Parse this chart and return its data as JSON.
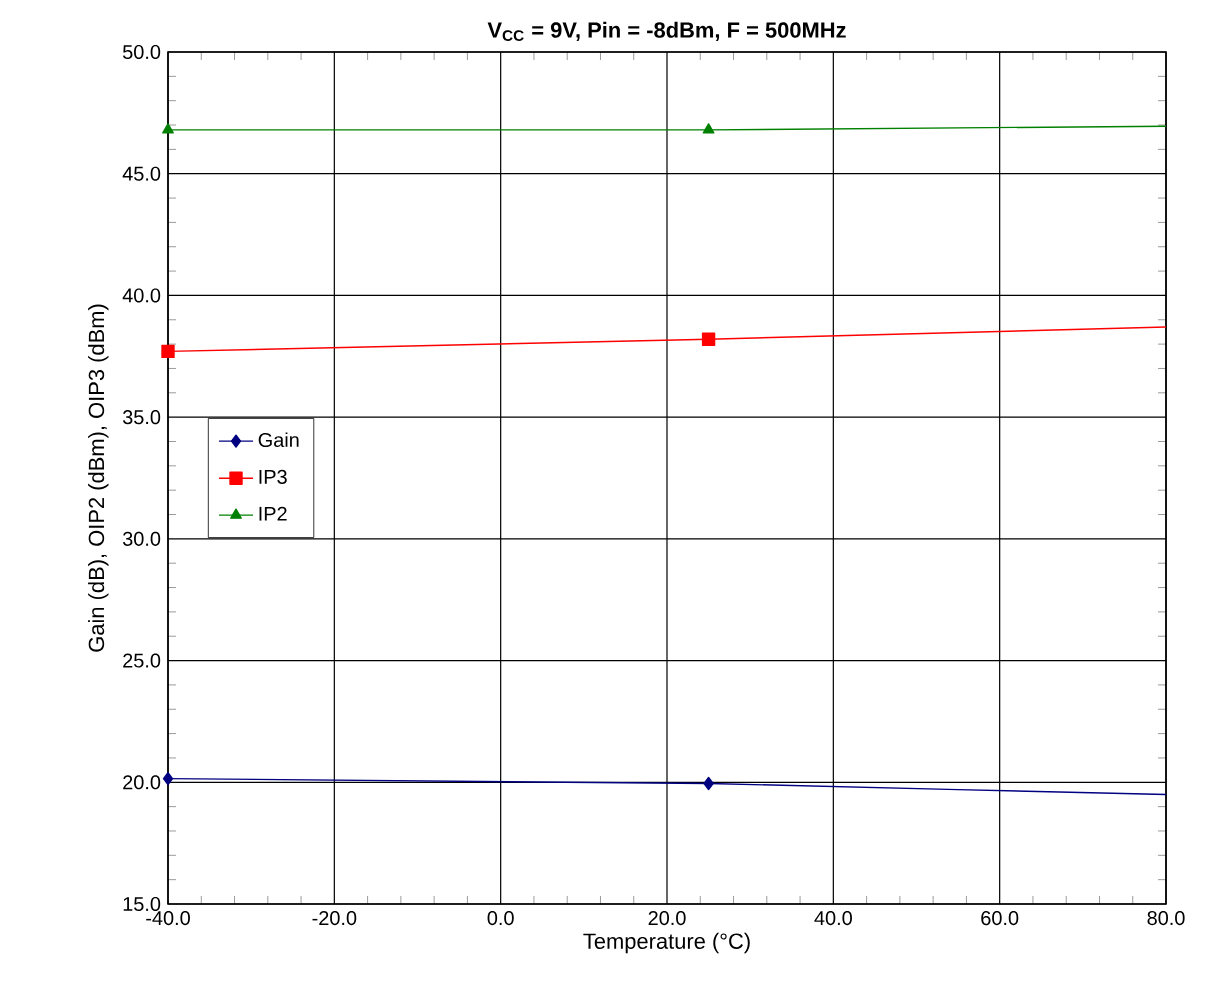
{
  "chart_data": {
    "type": "line",
    "title": "**V$_{CC}$ = 9V, Pin = -8dBm, F = 500MHz**",
    "xlabel": "Temperature (°C)",
    "ylabel": "Gain (dB), OIP2 (dBm), OIP3 (dBm)",
    "xlim": [
      -40,
      80
    ],
    "xticks": [
      {
        "value": -40,
        "label": "-40.0"
      },
      {
        "value": -20,
        "label": "-20.0"
      },
      {
        "value": 0,
        "label": "0.0"
      },
      {
        "value": 20,
        "label": "20.0"
      },
      {
        "value": 40,
        "label": "40.0"
      },
      {
        "value": 60,
        "label": "60.0"
      },
      {
        "value": 80,
        "label": "80.0"
      }
    ],
    "ylim": [
      15,
      50
    ],
    "yticks": [
      {
        "value": 15,
        "label": "15.0"
      },
      {
        "value": 20,
        "label": "20.0"
      },
      {
        "value": 25,
        "label": "25.0"
      },
      {
        "value": 30,
        "label": "30.0"
      },
      {
        "value": 35,
        "label": "35.0"
      },
      {
        "value": 40,
        "label": "40.0"
      },
      {
        "value": 45,
        "label": "45.0"
      },
      {
        "value": 50,
        "label": "50.0"
      }
    ],
    "grid": true,
    "legend": "left",
    "line_style": "solid",
    "series": [
      {
        "name": "Gain",
        "color": "#000080",
        "marker": "diamond",
        "x": [
          -40,
          25
        ],
        "values": [
          20.15,
          19.95
        ]
      },
      {
        "name": "IP3",
        "color": "#ff0000",
        "marker": "square",
        "x": [
          -40,
          25
        ],
        "values": [
          37.7,
          38.2
        ]
      },
      {
        "name": "IP2",
        "color": "#008000",
        "marker": "triangle",
        "x": [
          -40,
          25
        ],
        "values": [
          46.8,
          46.8
        ]
      },
      {
        "color": "#000080",
        "marker": "none",
        "x": [
          25,
          55,
          80
        ],
        "values": [
          19.95,
          19.7,
          19.5
        ]
      },
      {
        "color": "#ff0000",
        "marker": "none",
        "x": [
          25,
          80
        ],
        "values": [
          38.2,
          38.7
        ]
      },
      {
        "color": "#008000",
        "marker": "none",
        "x": [
          25,
          80
        ],
        "values": [
          46.8,
          46.95
        ]
      }
    ]
  }
}
